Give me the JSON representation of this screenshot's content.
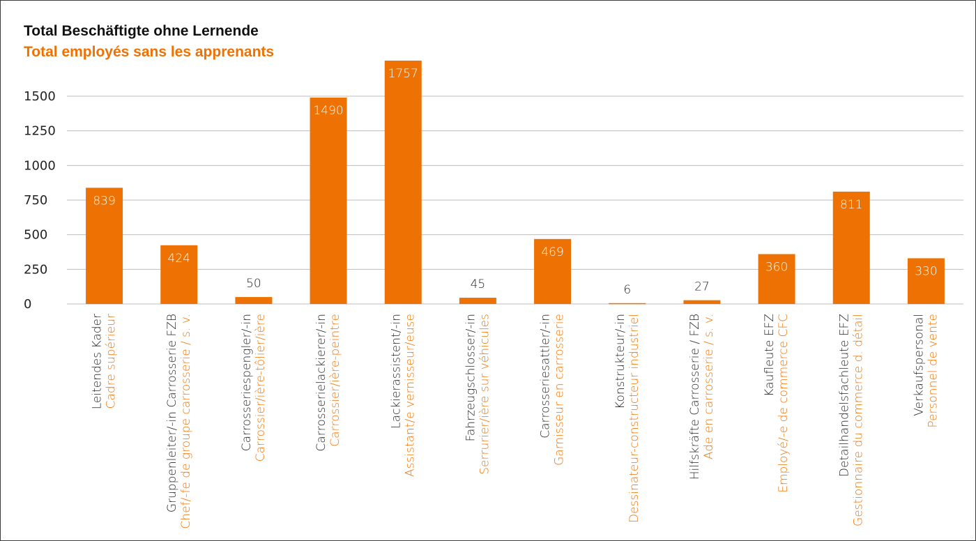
{
  "chart_data": {
    "type": "bar",
    "title": "Total Beschäftigte ohne Lernende",
    "subtitle": "Total employés sans les apprenants",
    "ylim": [
      0,
      1800
    ],
    "yticks": [
      0,
      250,
      500,
      750,
      1000,
      1250,
      1500
    ],
    "grid": true,
    "categories": [
      "Leitendes Kader",
      "Gruppenleiter/-in Carrosserie FZB",
      "Carrosseriespengler/-in",
      "Carrosserielackierer/-in",
      "Lackierassistent/-in",
      "Fahrzeugschlosser/-in",
      "Carrosseriesattler/-in",
      "Konstrukteur/-in",
      "Hilfskräfte Carrosserie / FZB",
      "Kaufleute EFZ",
      "Detailhandelsfachleute EFZ",
      "Verkaufspersonal"
    ],
    "categories_fr": [
      "Cadre supérieur",
      "Chef/-fe de groupe carrosserie / s. v.",
      "Carrossier/ière-tôlier/ière",
      "Carrossier/ière-peintre",
      "Assistant/e vernisseur/euse",
      "Serrurier/ière sur véhicules",
      "Garnisseur en carrosserie",
      "Dessinateur-constructeur industriel",
      "Ade en carrosserie / s. v.",
      "Employé/-e de commerce CFC",
      "Gestionnaire du commerce d. détail",
      "Personnel de vente"
    ],
    "values": [
      839,
      424,
      50,
      1490,
      1757,
      45,
      469,
      6,
      27,
      360,
      811,
      330
    ],
    "bar_color": "#ee7203",
    "grid_color": "#bdbdbd",
    "label_inside_color": "#ffffff",
    "label_outside_color": "#222222"
  }
}
